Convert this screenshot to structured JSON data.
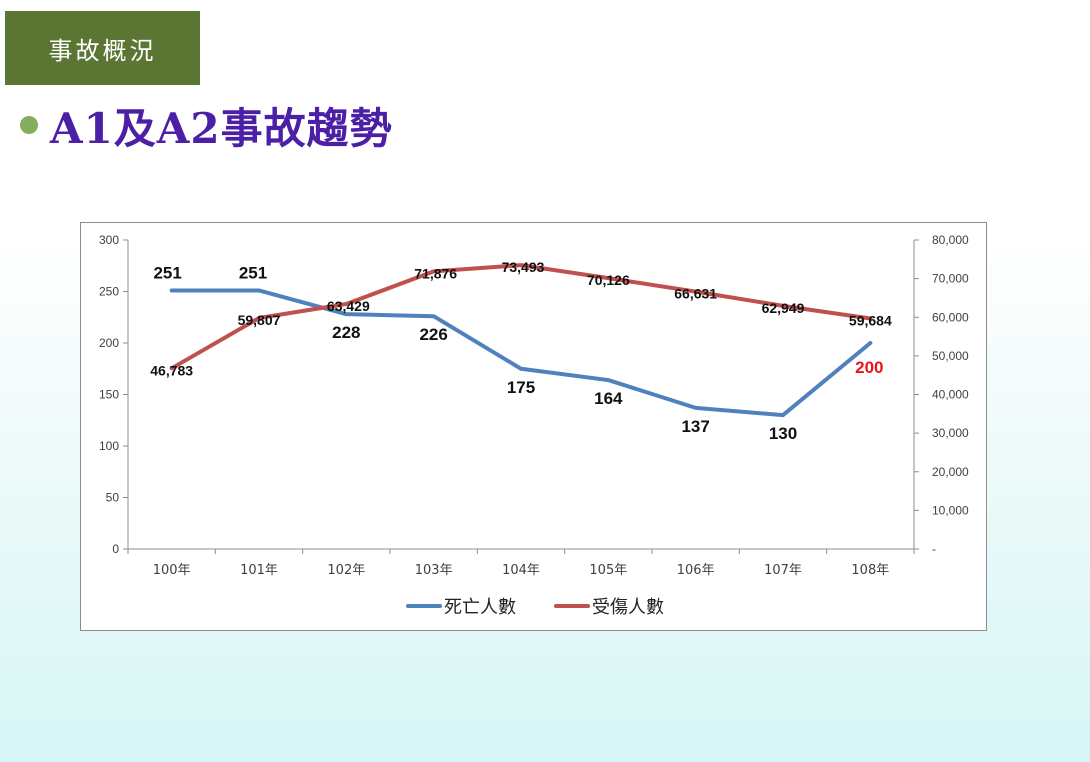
{
  "header": {
    "section_tag": "事故概況",
    "title": "A1及A2事故趨勢"
  },
  "chart_data": {
    "type": "line",
    "categories": [
      "100年",
      "101年",
      "102年",
      "103年",
      "104年",
      "105年",
      "106年",
      "107年",
      "108年"
    ],
    "series": [
      {
        "name": "死亡人數",
        "axis": "left",
        "color": "#4f81bd",
        "values": [
          251,
          251,
          228,
          226,
          175,
          164,
          137,
          130,
          200
        ],
        "labels": [
          "251",
          "251",
          "228",
          "226",
          "175",
          "164",
          "137",
          "130",
          "200"
        ],
        "highlight_color": "#e8141b"
      },
      {
        "name": "受傷人數",
        "axis": "right",
        "color": "#c0504d",
        "values": [
          46783,
          59807,
          63429,
          71876,
          73493,
          70126,
          66631,
          62949,
          59684
        ],
        "labels": [
          "46,783",
          "59,807",
          "63,429",
          "71,876",
          "73,493",
          "70,126",
          "66,631",
          "62,949",
          "59,684"
        ]
      }
    ],
    "left_axis": {
      "ylim": [
        0,
        300
      ],
      "ticks": [
        0,
        50,
        100,
        150,
        200,
        250,
        300
      ],
      "tick_labels": [
        "0",
        "50",
        "100",
        "150",
        "200",
        "250",
        "300"
      ]
    },
    "right_axis": {
      "ylim": [
        0,
        80000
      ],
      "ticks": [
        0,
        10000,
        20000,
        30000,
        40000,
        50000,
        60000,
        70000,
        80000
      ],
      "tick_labels": [
        "-",
        "10,000",
        "20,000",
        "30,000",
        "40,000",
        "50,000",
        "60,000",
        "70,000",
        "80,000"
      ]
    },
    "grid": false,
    "legend": {
      "position": "bottom"
    }
  }
}
